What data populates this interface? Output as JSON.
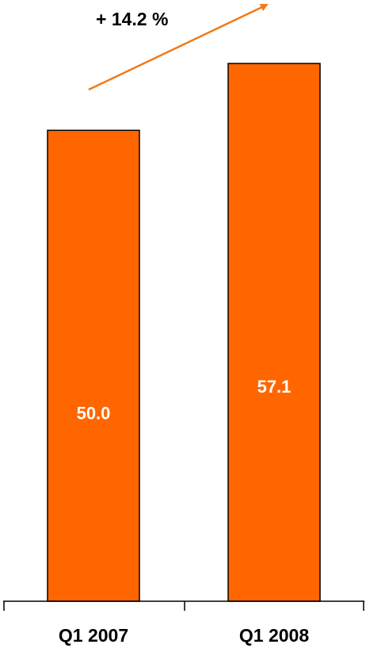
{
  "chart_data": {
    "type": "bar",
    "categories": [
      "Q1 2007",
      "Q1 2008"
    ],
    "values": [
      50.0,
      57.1
    ],
    "value_labels": [
      "50.0",
      "57.1"
    ],
    "title": "",
    "xlabel": "",
    "ylabel": "",
    "ylim": [
      0,
      63
    ],
    "grid": false,
    "bar_color": "#FF6600",
    "annotation": {
      "text": "+ 14.2 %",
      "arrow_color": "#F07A1A"
    }
  }
}
